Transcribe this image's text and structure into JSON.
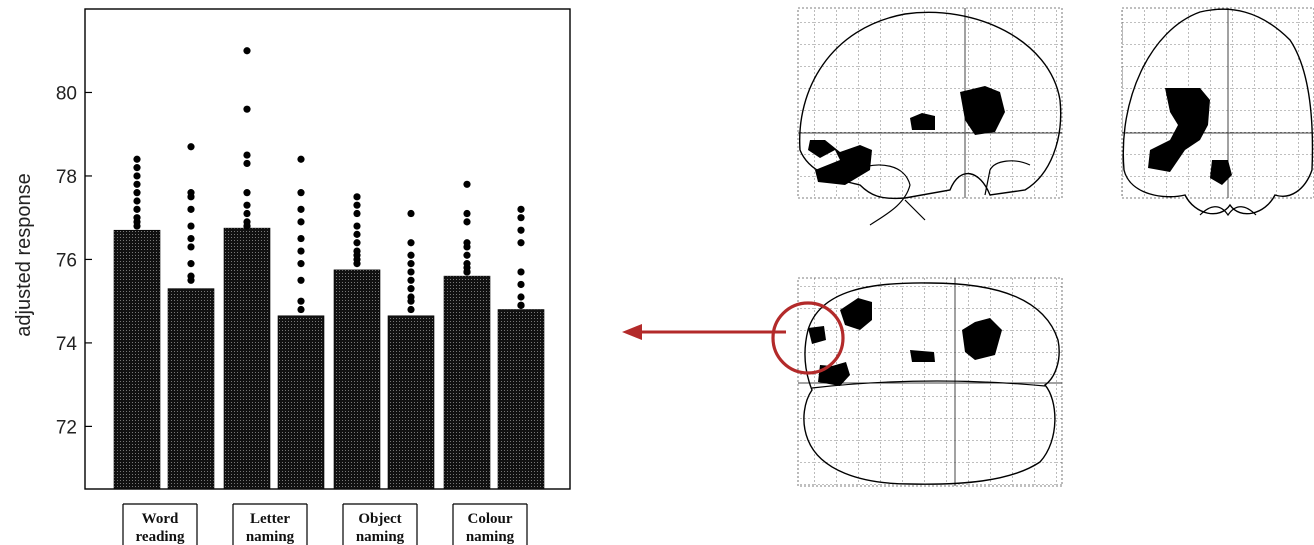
{
  "chart_data": {
    "type": "bar",
    "ylabel": "adjusted response",
    "ylim": [
      70.5,
      82.0
    ],
    "yticks": [
      72,
      74,
      76,
      78,
      80
    ],
    "grid": false,
    "legend": "none",
    "groups": [
      {
        "label_line1": "Word",
        "label_line2": "reading"
      },
      {
        "label_line1": "Letter",
        "label_line2": "naming"
      },
      {
        "label_line1": "Object",
        "label_line2": "naming"
      },
      {
        "label_line1": "Colour",
        "label_line2": "naming"
      }
    ],
    "bars": [
      {
        "group": 0,
        "value": 76.7,
        "points": [
          78.4,
          78.2,
          78.0,
          77.8,
          77.6,
          77.4,
          77.2,
          77.0,
          76.9,
          76.8
        ]
      },
      {
        "group": 0,
        "value": 75.3,
        "points": [
          78.7,
          77.6,
          77.5,
          77.2,
          76.8,
          76.5,
          76.3,
          75.9,
          75.6,
          75.5
        ]
      },
      {
        "group": 1,
        "value": 76.75,
        "points": [
          81.0,
          79.6,
          78.5,
          78.3,
          77.6,
          77.3,
          77.1,
          76.9,
          76.8,
          76.8
        ]
      },
      {
        "group": 1,
        "value": 74.65,
        "points": [
          78.4,
          77.6,
          77.2,
          76.9,
          76.5,
          76.2,
          75.9,
          75.5,
          75.0,
          74.8
        ]
      },
      {
        "group": 2,
        "value": 75.75,
        "points": [
          77.5,
          77.3,
          77.1,
          76.8,
          76.6,
          76.4,
          76.2,
          76.1,
          76.0,
          75.9
        ]
      },
      {
        "group": 2,
        "value": 74.65,
        "points": [
          77.1,
          76.4,
          76.1,
          75.9,
          75.7,
          75.5,
          75.3,
          75.1,
          75.0,
          74.8
        ]
      },
      {
        "group": 3,
        "value": 75.6,
        "points": [
          77.8,
          77.1,
          76.9,
          76.4,
          76.3,
          76.1,
          75.9,
          75.8,
          75.7,
          75.7
        ]
      },
      {
        "group": 3,
        "value": 74.8,
        "points": [
          77.2,
          77.0,
          76.7,
          76.4,
          75.7,
          75.4,
          75.1,
          74.9,
          74.9
        ]
      }
    ]
  },
  "colors": {
    "bar": "#111111",
    "dot": "#000000",
    "highlight": "#b32a2a",
    "grid_line": "#444444"
  }
}
